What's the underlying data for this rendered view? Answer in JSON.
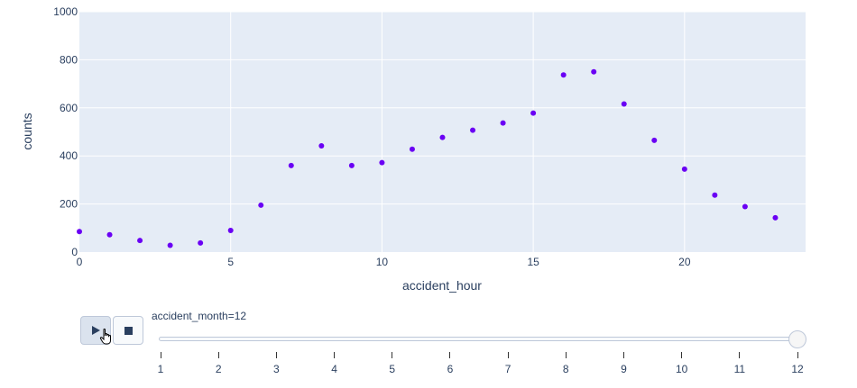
{
  "chart_data": {
    "type": "scatter",
    "x": [
      0,
      1,
      2,
      3,
      4,
      5,
      6,
      7,
      8,
      9,
      10,
      11,
      12,
      13,
      14,
      15,
      16,
      17,
      18,
      19,
      20,
      21,
      22,
      23
    ],
    "series": [
      {
        "values": [
          85,
          72,
          48,
          28,
          38,
          90,
          195,
          360,
          442,
          360,
          372,
          428,
          477,
          507,
          537,
          578,
          737,
          750,
          616,
          465,
          345,
          237,
          189,
          143
        ]
      }
    ],
    "xlabel": "accident_hour",
    "ylabel": "counts",
    "xlim": [
      0,
      24
    ],
    "ylim": [
      0,
      1000
    ],
    "x_ticks": [
      "0",
      "5",
      "10",
      "15",
      "20"
    ],
    "y_ticks": [
      "0",
      "200",
      "400",
      "600",
      "800",
      "1000"
    ],
    "grid": true,
    "marker_color": "#6a00f4",
    "plot_bg": "#e5ecf6"
  },
  "animation": {
    "play_icon": "play-icon",
    "stop_icon": "stop-icon",
    "slider_label": "accident_month=12",
    "slider_steps": [
      "1",
      "2",
      "3",
      "4",
      "5",
      "6",
      "7",
      "8",
      "9",
      "10",
      "11",
      "12"
    ],
    "current_step": "12"
  }
}
